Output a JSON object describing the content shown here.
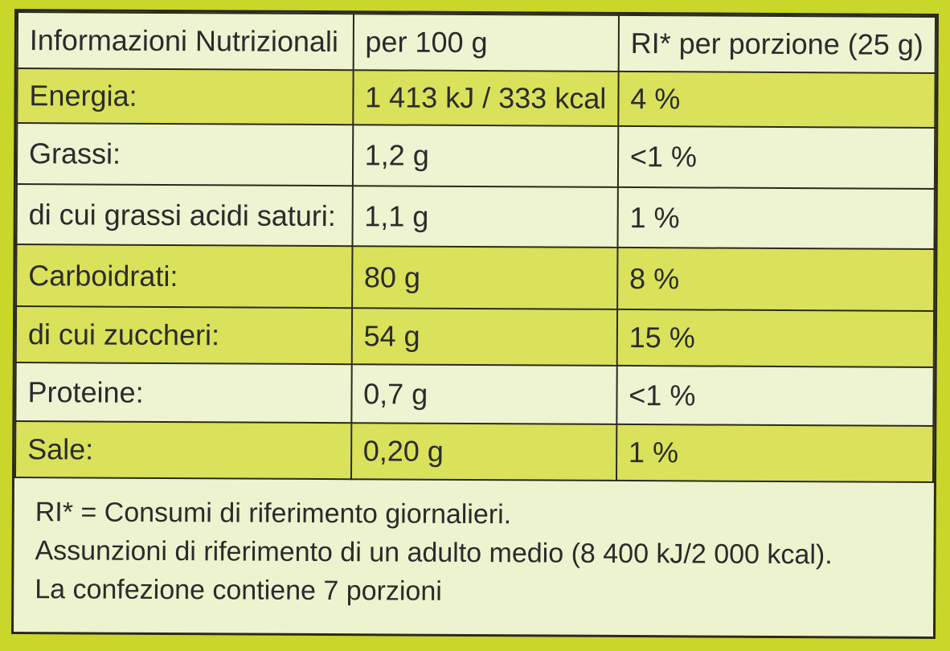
{
  "table": {
    "headers": [
      "Informazioni Nutrizionali",
      "per 100 g",
      "RI* per porzione (25 g)"
    ],
    "rows": [
      {
        "label": "Energia:",
        "per100": "1 413 kJ / 333 kcal",
        "ri": "4 %",
        "shade": "green"
      },
      {
        "label": "Grassi:",
        "per100": "1,2 g",
        "ri": "<1 %",
        "shade": "pale"
      },
      {
        "label": "di cui grassi acidi saturi:",
        "per100": "1,1 g",
        "ri": "1 %",
        "shade": "pale"
      },
      {
        "label": "Carboidrati:",
        "per100": "80 g",
        "ri": "8 %",
        "shade": "green"
      },
      {
        "label": "di cui zuccheri:",
        "per100": "54 g",
        "ri": "15 %",
        "shade": "green"
      },
      {
        "label": "Proteine:",
        "per100": "0,7 g",
        "ri": "<1 %",
        "shade": "pale"
      },
      {
        "label": "Sale:",
        "per100": "0,20 g",
        "ri": "1 %",
        "shade": "green"
      }
    ]
  },
  "footer": {
    "line1": "RI* = Consumi di riferimento giornalieri.",
    "line2": "Assunzioni di riferimento di un adulto medio (8 400 kJ/2 000 kcal).",
    "line3": "La confezione contiene 7 porzioni"
  },
  "colors": {
    "background": "#c9d62a",
    "row_green": "#d9e25a",
    "row_pale": "#eef3d2"
  }
}
